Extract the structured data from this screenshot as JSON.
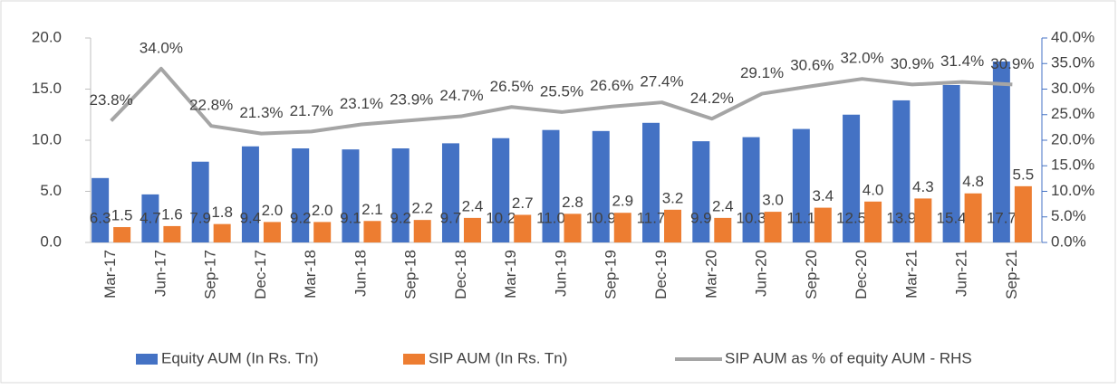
{
  "chart_data": {
    "type": "bar-line",
    "categories": [
      "Mar-17",
      "Jun-17",
      "Sep-17",
      "Dec-17",
      "Mar-18",
      "Jun-18",
      "Sep-18",
      "Dec-18",
      "Mar-19",
      "Jun-19",
      "Sep-19",
      "Dec-19",
      "Mar-20",
      "Jun-20",
      "Sep-20",
      "Dec-20",
      "Mar-21",
      "Jun-21",
      "Sep-21"
    ],
    "series": [
      {
        "name": "Equity AUM (In Rs. Tn)",
        "color": "#4472c4",
        "type": "bar",
        "values": [
          6.3,
          4.7,
          7.9,
          9.4,
          9.2,
          9.1,
          9.2,
          9.7,
          10.2,
          11.0,
          10.9,
          11.7,
          9.9,
          10.3,
          11.1,
          12.5,
          13.9,
          15.4,
          17.7
        ],
        "value_labels": [
          "6.3",
          "4.7",
          "7.9",
          "9.4",
          "9.2",
          "9.1",
          "9.2",
          "9.7",
          "10.2",
          "11.0",
          "10.9",
          "11.7",
          "9.9",
          "10.3",
          "11.1",
          "12.5",
          "13.9",
          "15.4",
          "17.7"
        ]
      },
      {
        "name": "SIP AUM (In Rs. Tn)",
        "color": "#ed7d31",
        "type": "bar",
        "values": [
          1.5,
          1.6,
          1.8,
          2.0,
          2.0,
          2.1,
          2.2,
          2.4,
          2.7,
          2.8,
          2.9,
          3.2,
          2.4,
          3.0,
          3.4,
          4.0,
          4.3,
          4.8,
          5.5
        ],
        "value_labels": [
          "1.5",
          "1.6",
          "1.8",
          "2.0",
          "2.0",
          "2.1",
          "2.2",
          "2.4",
          "2.7",
          "2.8",
          "2.9",
          "3.2",
          "2.4",
          "3.0",
          "3.4",
          "4.0",
          "4.3",
          "4.8",
          "5.5"
        ]
      },
      {
        "name": "SIP AUM as % of equity AUM - RHS",
        "color": "#a5a5a5",
        "type": "line",
        "axis": "y2",
        "values": [
          23.8,
          34.0,
          22.8,
          21.3,
          21.7,
          23.1,
          23.9,
          24.7,
          26.5,
          25.5,
          26.6,
          27.4,
          24.2,
          29.1,
          30.6,
          32.0,
          30.9,
          31.4,
          30.9
        ],
        "value_labels": [
          "23.8%",
          "34.0%",
          "22.8%",
          "21.3%",
          "21.7%",
          "23.1%",
          "23.9%",
          "24.7%",
          "26.5%",
          "25.5%",
          "26.6%",
          "27.4%",
          "24.2%",
          "29.1%",
          "30.6%",
          "32.0%",
          "30.9%",
          "31.4%",
          "30.9%"
        ]
      }
    ],
    "ylim": [
      0,
      20
    ],
    "yticks": [
      {
        "value": 0,
        "label": "0.0"
      },
      {
        "value": 5,
        "label": "5.0"
      },
      {
        "value": 10,
        "label": "10.0"
      },
      {
        "value": 15,
        "label": "15.0"
      },
      {
        "value": 20,
        "label": "20.0"
      }
    ],
    "y2lim": [
      0,
      40
    ],
    "y2ticks": [
      {
        "value": 0,
        "label": "0.0%"
      },
      {
        "value": 5,
        "label": "5.0%"
      },
      {
        "value": 10,
        "label": "10.0%"
      },
      {
        "value": 15,
        "label": "15.0%"
      },
      {
        "value": 20,
        "label": "20.0%"
      },
      {
        "value": 25,
        "label": "25.0%"
      },
      {
        "value": 30,
        "label": "30.0%"
      },
      {
        "value": 35,
        "label": "35.0%"
      },
      {
        "value": 40,
        "label": "40.0%"
      }
    ],
    "legend": "bottom"
  }
}
